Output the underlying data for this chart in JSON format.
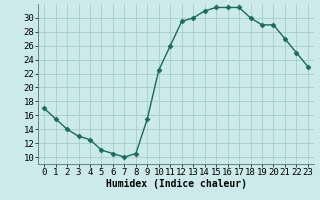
{
  "x": [
    0,
    1,
    2,
    3,
    4,
    5,
    6,
    7,
    8,
    9,
    10,
    11,
    12,
    13,
    14,
    15,
    16,
    17,
    18,
    19,
    20,
    21,
    22,
    23
  ],
  "y": [
    17,
    15.5,
    14,
    13,
    12.5,
    11,
    10.5,
    10,
    10.5,
    15.5,
    22.5,
    26,
    29.5,
    30,
    31,
    31.5,
    31.5,
    31.5,
    30,
    29,
    29,
    27,
    25,
    23
  ],
  "line_color": "#1a6b5a",
  "marker": "D",
  "markersize": 2.5,
  "linewidth": 1.0,
  "bg_color": "#cceaea",
  "grid_color": "#aacccc",
  "xlabel": "Humidex (Indice chaleur)",
  "xlim": [
    -0.5,
    23.5
  ],
  "ylim": [
    9,
    32
  ],
  "yticks": [
    10,
    12,
    14,
    16,
    18,
    20,
    22,
    24,
    26,
    28,
    30
  ],
  "xticks": [
    0,
    1,
    2,
    3,
    4,
    5,
    6,
    7,
    8,
    9,
    10,
    11,
    12,
    13,
    14,
    15,
    16,
    17,
    18,
    19,
    20,
    21,
    22,
    23
  ],
  "xlabel_fontsize": 7,
  "tick_fontsize": 6.5
}
